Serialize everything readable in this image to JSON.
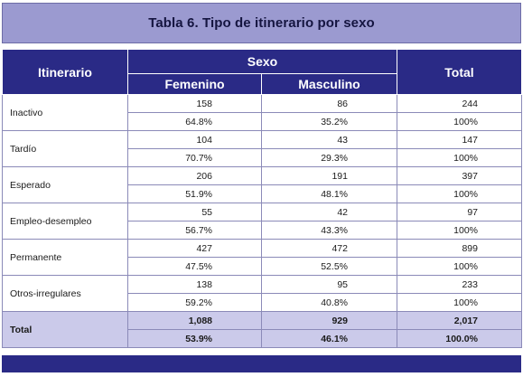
{
  "title": "Tabla 6. Tipo de itinerario por sexo",
  "header": {
    "col_itinerario": "Itinerario",
    "col_sexo": "Sexo",
    "col_femenino": "Femenino",
    "col_masculino": "Masculino",
    "col_total": "Total"
  },
  "rows": [
    {
      "label": "Inactivo",
      "fem_n": "158",
      "masc_n": "86",
      "total_n": "244",
      "fem_pct": "64.8%",
      "masc_pct": "35.2%",
      "total_pct": "100%"
    },
    {
      "label": "Tardío",
      "fem_n": "104",
      "masc_n": "43",
      "total_n": "147",
      "fem_pct": "70.7%",
      "masc_pct": "29.3%",
      "total_pct": "100%"
    },
    {
      "label": "Esperado",
      "fem_n": "206",
      "masc_n": "191",
      "total_n": "397",
      "fem_pct": "51.9%",
      "masc_pct": "48.1%",
      "total_pct": "100%"
    },
    {
      "label": "Empleo-desempleo",
      "fem_n": "55",
      "masc_n": "42",
      "total_n": "97",
      "fem_pct": "56.7%",
      "masc_pct": "43.3%",
      "total_pct": "100%"
    },
    {
      "label": "Permanente",
      "fem_n": "427",
      "masc_n": "472",
      "total_n": "899",
      "fem_pct": "47.5%",
      "masc_pct": "52.5%",
      "total_pct": "100%"
    },
    {
      "label": "Otros-irregulares",
      "fem_n": "138",
      "masc_n": "95",
      "total_n": "233",
      "fem_pct": "59.2%",
      "masc_pct": "40.8%",
      "total_pct": "100%"
    },
    {
      "label": "Total",
      "fem_n": "1,088",
      "masc_n": "929",
      "total_n": "2,017",
      "fem_pct": "53.9%",
      "masc_pct": "46.1%",
      "total_pct": "100.0%"
    }
  ],
  "colors": {
    "header_bg": "#2a2a86",
    "title_bg": "#9b9ad0",
    "total_row_bg": "#cbcaea",
    "grid": "#8b8ab8"
  }
}
